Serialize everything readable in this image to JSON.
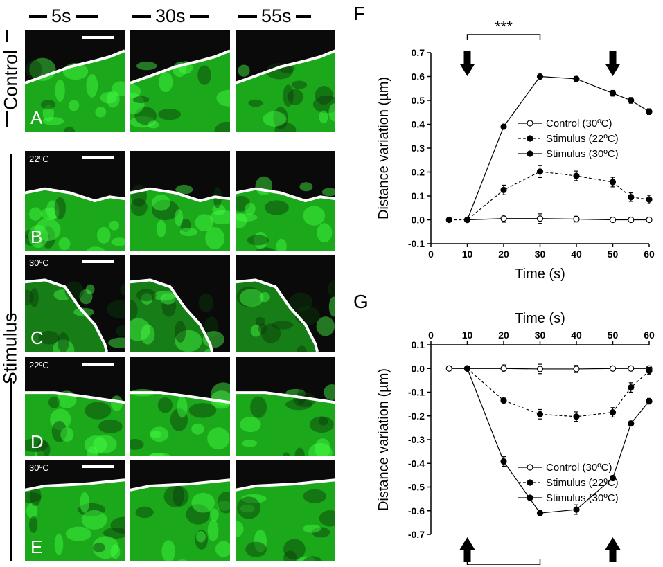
{
  "time_headers": [
    "5s",
    "30s",
    "55s"
  ],
  "side_labels": {
    "control": "Control",
    "stimulus": "Stimulus"
  },
  "image_rows": [
    {
      "letter": "A",
      "temp": ""
    },
    {
      "letter": "B",
      "temp": "22ºC"
    },
    {
      "letter": "C",
      "temp": "30ºC"
    },
    {
      "letter": "D",
      "temp": "22ºC"
    },
    {
      "letter": "E",
      "temp": "30ºC"
    }
  ],
  "colors": {
    "fluorescence": "#22dd22",
    "background": "#0a0a0a",
    "line": "#000000"
  },
  "chart_data": [
    {
      "panel": "F",
      "type": "line",
      "xlabel": "Time (s)",
      "ylabel": "Distance variation (µm)",
      "xlim": [
        0,
        60
      ],
      "ylim": [
        -0.1,
        0.7
      ],
      "xticks": [
        0,
        10,
        20,
        30,
        40,
        50,
        60
      ],
      "yticks": [
        -0.1,
        0.0,
        0.1,
        0.2,
        0.3,
        0.4,
        0.5,
        0.6,
        0.7
      ],
      "x_axis_position": "bottom",
      "significance": "***",
      "significance_span": [
        10,
        30
      ],
      "arrows_at": [
        10,
        50
      ],
      "arrow_direction": "down",
      "legend_position": "right-middle",
      "series": [
        {
          "name": "Control (30ºC)",
          "style": "open-circle-solid",
          "x": [
            10,
            20,
            30,
            40,
            50,
            55,
            60
          ],
          "y": [
            0.0,
            0.005,
            0.005,
            0.003,
            0.0,
            0.0,
            0.0
          ],
          "err": [
            0.0,
            0.015,
            0.02,
            0.012,
            0.0,
            0.0,
            0.0
          ]
        },
        {
          "name": "Stimulus (22ºC)",
          "style": "filled-circle-dashed",
          "x": [
            5,
            10,
            20,
            30,
            40,
            50,
            55,
            60
          ],
          "y": [
            0.0,
            0.0,
            0.125,
            0.202,
            0.184,
            0.158,
            0.095,
            0.085
          ],
          "err": [
            0.0,
            0.0,
            0.02,
            0.025,
            0.02,
            0.02,
            0.018,
            0.018
          ]
        },
        {
          "name": "Stimulus (30ºC)",
          "style": "filled-circle-solid",
          "x": [
            10,
            20,
            30,
            40,
            50,
            55,
            60
          ],
          "y": [
            0.0,
            0.39,
            0.6,
            0.59,
            0.53,
            0.5,
            0.453
          ],
          "err": [
            0.0,
            0.01,
            0.01,
            0.01,
            0.012,
            0.012,
            0.012
          ]
        }
      ]
    },
    {
      "panel": "G",
      "type": "line",
      "xlabel": "Time (s)",
      "ylabel": "Distance variation (µm)",
      "xlim": [
        0,
        60
      ],
      "ylim": [
        -0.7,
        0.1
      ],
      "xticks": [
        0,
        10,
        20,
        30,
        40,
        50,
        60
      ],
      "yticks": [
        0.1,
        0.0,
        -0.1,
        -0.2,
        -0.3,
        -0.4,
        -0.5,
        -0.6,
        -0.7
      ],
      "x_axis_position": "top",
      "significance": "***",
      "significance_span": [
        10,
        30
      ],
      "arrows_at": [
        10,
        50
      ],
      "arrow_direction": "up",
      "legend_position": "right-middle",
      "series": [
        {
          "name": "Control (30ºC)",
          "style": "open-circle-solid",
          "x": [
            5,
            10,
            20,
            30,
            40,
            50,
            55,
            60
          ],
          "y": [
            0.0,
            0.0,
            0.0,
            -0.002,
            -0.002,
            0.0,
            0.0,
            0.0
          ],
          "err": [
            0.0,
            0.0,
            0.015,
            0.02,
            0.015,
            0.0,
            0.0,
            0.0
          ]
        },
        {
          "name": "Stimulus (22ºC)",
          "style": "filled-circle-dashed",
          "x": [
            10,
            20,
            30,
            40,
            50,
            55,
            60
          ],
          "y": [
            0.0,
            -0.135,
            -0.193,
            -0.203,
            -0.185,
            -0.08,
            -0.01
          ],
          "err": [
            0.0,
            0.01,
            0.02,
            0.02,
            0.02,
            0.02,
            0.015
          ]
        },
        {
          "name": "Stimulus (30ºC)",
          "style": "filled-circle-solid",
          "x": [
            10,
            20,
            30,
            40,
            50,
            55,
            60
          ],
          "y": [
            0.0,
            -0.392,
            -0.61,
            -0.595,
            -0.462,
            -0.232,
            -0.138
          ],
          "err": [
            0.0,
            0.02,
            0.01,
            0.02,
            0.01,
            0.01,
            0.012
          ]
        }
      ]
    }
  ]
}
